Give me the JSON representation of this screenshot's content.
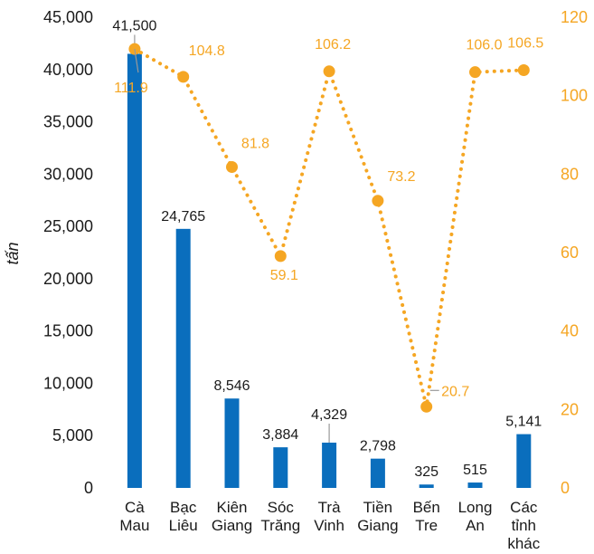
{
  "chart_data": {
    "type": "bar",
    "categories": [
      [
        "Cà",
        "Mau"
      ],
      [
        "Bạc",
        "Liêu"
      ],
      [
        "Kiên",
        "Giang"
      ],
      [
        "Sóc",
        "Trăng"
      ],
      [
        "Trà",
        "Vinh"
      ],
      [
        "Tiền",
        "Giang"
      ],
      [
        "Bến",
        "Tre"
      ],
      [
        "Long",
        "An"
      ],
      [
        "Các",
        "tỉnh",
        "khác"
      ]
    ],
    "ylabel": "tấn",
    "y_left_lim": [
      0,
      45000
    ],
    "y_left_ticks": [
      "0",
      "5,000",
      "10,000",
      "15,000",
      "20,000",
      "25,000",
      "30,000",
      "35,000",
      "40,000",
      "45,000"
    ],
    "y_right_lim": [
      0,
      120
    ],
    "y_right_ticks": [
      "0",
      "20",
      "40",
      "60",
      "80",
      "100",
      "120"
    ],
    "series": [
      {
        "type": "bar",
        "axis": "left",
        "color": "#0a6ebd",
        "values": [
          41500,
          24765,
          8546,
          3884,
          4329,
          2798,
          325,
          515,
          5141
        ],
        "labels": [
          "41,500",
          "24,765",
          "8,546",
          "3,884",
          "4,329",
          "2,798",
          "325",
          "515",
          "5,141"
        ]
      },
      {
        "type": "line",
        "style": "dotted",
        "axis": "right",
        "color": "#f5a623",
        "values": [
          111.9,
          104.8,
          81.8,
          59.1,
          106.2,
          73.2,
          20.7,
          106.0,
          106.5
        ],
        "labels": [
          "111.9",
          "104.8",
          "81.8",
          "59.1",
          "106.2",
          "73.2",
          "20.7",
          "106.0",
          "106.5"
        ]
      }
    ],
    "grid": false,
    "legend": "none"
  }
}
